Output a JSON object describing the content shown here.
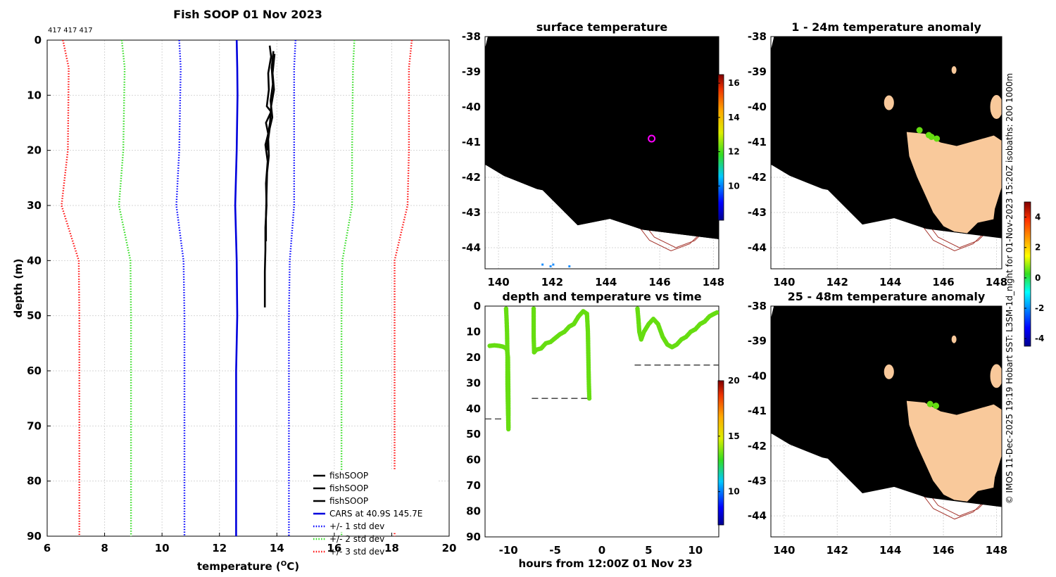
{
  "title": "Fish SOOP 01 Nov 2023",
  "ids_label": "417 417 417",
  "side_text": "© IMOS 11-Dec-2025 19:19 Hobart SST: L3SM-1d_night for 01-Nov-2023 15:20Z isobaths: 200  1000m",
  "colors": {
    "fishsoop": "#000000",
    "cars": "#0000dd",
    "std1": "#0000ff",
    "std2": "#33dd22",
    "std3": "#ff1111",
    "land": "#f9c99b",
    "isobath": "#a3322a",
    "marker": "#ff00ff"
  },
  "chart_data": [
    {
      "id": "profile",
      "type": "line",
      "xlabel": "temperature (°C)",
      "ylabel": "depth (m)",
      "xlim": [
        6,
        20
      ],
      "ylim": [
        0,
        90
      ],
      "xticks": [
        6,
        8,
        10,
        12,
        14,
        16,
        18,
        20
      ],
      "yticks": [
        0,
        10,
        20,
        30,
        40,
        50,
        60,
        70,
        80,
        90
      ],
      "legend_position": "bottom-right",
      "series": [
        {
          "name": "fishSOOP",
          "style": "solid",
          "color_key": "fishsoop",
          "points": [
            [
              13.75,
              1
            ],
            [
              13.8,
              3
            ],
            [
              13.7,
              6
            ],
            [
              13.72,
              9
            ],
            [
              13.65,
              12
            ],
            [
              13.8,
              13
            ],
            [
              13.62,
              15
            ],
            [
              13.7,
              17
            ],
            [
              13.6,
              19
            ],
            [
              13.68,
              22
            ],
            [
              13.62,
              26
            ],
            [
              13.64,
              30
            ],
            [
              13.6,
              34
            ],
            [
              13.6,
              38
            ],
            [
              13.58,
              42
            ],
            [
              13.58,
              46
            ],
            [
              13.58,
              48.5
            ]
          ]
        },
        {
          "name": "fishSOOP",
          "style": "solid",
          "color_key": "fishsoop",
          "points": [
            [
              13.88,
              2
            ],
            [
              13.82,
              5
            ],
            [
              13.86,
              8
            ],
            [
              13.78,
              11
            ],
            [
              13.84,
              14
            ],
            [
              13.75,
              16
            ],
            [
              13.7,
              18
            ],
            [
              13.72,
              21
            ],
            [
              13.66,
              24
            ],
            [
              13.64,
              28
            ],
            [
              13.62,
              32
            ],
            [
              13.62,
              36.5
            ]
          ]
        },
        {
          "name": "fishSOOP",
          "style": "solid",
          "color_key": "fishsoop",
          "points": [
            [
              13.92,
              2.5
            ],
            [
              13.85,
              6
            ],
            [
              13.9,
              9
            ],
            [
              13.8,
              12
            ],
            [
              13.76,
              15
            ],
            [
              13.68,
              17.5
            ],
            [
              13.66,
              20
            ]
          ]
        },
        {
          "name": "CARS at 40.9S 145.7E",
          "style": "solid",
          "color_key": "cars",
          "points": [
            [
              12.6,
              0
            ],
            [
              12.62,
              5
            ],
            [
              12.63,
              10
            ],
            [
              12.6,
              20
            ],
            [
              12.55,
              30
            ],
            [
              12.6,
              40
            ],
            [
              12.62,
              50
            ],
            [
              12.58,
              60
            ],
            [
              12.58,
              70
            ],
            [
              12.58,
              80
            ],
            [
              12.58,
              90
            ]
          ]
        },
        {
          "name": "+/- 1 std dev",
          "style": "dotted",
          "color_key": "std1",
          "points": [
            [
              10.6,
              0
            ],
            [
              10.65,
              5
            ],
            [
              10.6,
              20
            ],
            [
              10.5,
              30
            ],
            [
              10.75,
              40
            ],
            [
              10.78,
              50
            ],
            [
              10.78,
              90
            ]
          ]
        },
        {
          "name": "+/- 1 std dev",
          "style": "dotted",
          "color_key": "std1",
          "legend": false,
          "points": [
            [
              14.65,
              0
            ],
            [
              14.6,
              5
            ],
            [
              14.6,
              20
            ],
            [
              14.6,
              30
            ],
            [
              14.45,
              40
            ],
            [
              14.42,
              50
            ],
            [
              14.42,
              90
            ]
          ]
        },
        {
          "name": "+/- 2 std dev",
          "style": "dotted",
          "color_key": "std2",
          "points": [
            [
              8.6,
              0
            ],
            [
              8.7,
              5
            ],
            [
              8.65,
              20
            ],
            [
              8.5,
              30
            ],
            [
              8.9,
              40
            ],
            [
              8.92,
              50
            ],
            [
              8.92,
              90
            ]
          ]
        },
        {
          "name": "+/- 2 std dev",
          "style": "dotted",
          "color_key": "std2",
          "legend": false,
          "points": [
            [
              16.7,
              0
            ],
            [
              16.65,
              5
            ],
            [
              16.62,
              20
            ],
            [
              16.62,
              30
            ],
            [
              16.28,
              40
            ],
            [
              16.25,
              50
            ],
            [
              16.25,
              90
            ]
          ]
        },
        {
          "name": "+/- 3 std dev",
          "style": "dotted",
          "color_key": "std3",
          "points": [
            [
              6.55,
              0
            ],
            [
              6.75,
              5
            ],
            [
              6.72,
              20
            ],
            [
              6.5,
              30
            ],
            [
              7.1,
              40
            ],
            [
              7.12,
              50
            ],
            [
              7.12,
              90
            ]
          ]
        },
        {
          "name": "+/- 3 std dev",
          "style": "dotted",
          "color_key": "std3",
          "legend": false,
          "points": [
            [
              18.7,
              0
            ],
            [
              18.6,
              5
            ],
            [
              18.6,
              20
            ],
            [
              18.55,
              30
            ],
            [
              18.1,
              40
            ],
            [
              18.1,
              50
            ],
            [
              18.1,
              90
            ]
          ]
        }
      ]
    },
    {
      "id": "sst",
      "type": "heatmap",
      "title": "surface temperature",
      "xlim": [
        139.5,
        148.2
      ],
      "ylim": [
        -44.6,
        -38
      ],
      "xticks": [
        140,
        142,
        144,
        146,
        148
      ],
      "yticks": [
        -38,
        -39,
        -40,
        -41,
        -42,
        -43,
        -44
      ],
      "colorbar": {
        "range": [
          8,
          16.5
        ],
        "ticks": [
          10,
          12,
          14,
          16
        ]
      },
      "marker": {
        "lon": 145.7,
        "lat": -40.9
      }
    },
    {
      "id": "depth_time",
      "type": "scatter",
      "title": "depth and temperature vs time",
      "xlabel": "hours from 12:00Z 01 Nov 23",
      "xlim": [
        -12.5,
        12.5
      ],
      "ylim": [
        0,
        90
      ],
      "xticks": [
        -10,
        -5,
        0,
        5,
        10
      ],
      "yticks": [
        0,
        10,
        20,
        30,
        40,
        50,
        60,
        70,
        80,
        90
      ],
      "colorbar": {
        "range": [
          7,
          20
        ],
        "ticks": [
          10,
          15,
          20
        ]
      },
      "tracks": [
        [
          [
            -12,
            15.5
          ],
          [
            -11.5,
            15.3
          ],
          [
            -11,
            15.5
          ],
          [
            -10.6,
            15.8
          ],
          [
            -10.3,
            16.3
          ],
          [
            -10.15,
            17
          ],
          [
            -10.05,
            20
          ],
          [
            -10.02,
            30
          ],
          [
            -10.0,
            40
          ],
          [
            -10.0,
            48
          ],
          [
            -10.05,
            40
          ],
          [
            -10.1,
            30
          ],
          [
            -10.1,
            20
          ],
          [
            -10.15,
            10
          ],
          [
            -10.2,
            5
          ],
          [
            -10.25,
            1
          ]
        ],
        [
          [
            -7.3,
            1
          ],
          [
            -7.3,
            6
          ],
          [
            -7.3,
            12
          ],
          [
            -7.25,
            18
          ],
          [
            -7,
            17
          ],
          [
            -6.5,
            16.5
          ],
          [
            -6,
            14.5
          ],
          [
            -5.5,
            14
          ],
          [
            -5,
            12.5
          ],
          [
            -4.5,
            11
          ],
          [
            -4,
            10
          ],
          [
            -3.5,
            8
          ],
          [
            -3,
            7
          ],
          [
            -2.5,
            4
          ],
          [
            -2,
            2
          ],
          [
            -1.6,
            3
          ],
          [
            -1.5,
            10
          ],
          [
            -1.45,
            20
          ],
          [
            -1.4,
            30
          ],
          [
            -1.35,
            36
          ]
        ],
        [
          [
            3.8,
            1
          ],
          [
            3.9,
            5
          ],
          [
            4.0,
            10
          ],
          [
            4.2,
            13
          ],
          [
            4.5,
            10
          ],
          [
            5,
            7
          ],
          [
            5.5,
            5
          ],
          [
            6,
            7
          ],
          [
            6.5,
            12
          ],
          [
            7,
            15
          ],
          [
            7.5,
            16
          ],
          [
            8,
            15
          ],
          [
            8.5,
            13
          ],
          [
            9,
            12
          ],
          [
            9.5,
            10
          ],
          [
            10,
            9
          ],
          [
            10.5,
            7
          ],
          [
            11,
            6
          ],
          [
            11.5,
            4
          ],
          [
            12,
            3
          ],
          [
            12.3,
            2.5
          ]
        ]
      ],
      "bottoms": [
        {
          "x0": -12.5,
          "x1": -10.5,
          "depth": 44
        },
        {
          "x0": -7.5,
          "x1": -1.5,
          "depth": 36
        },
        {
          "x0": 3.5,
          "x1": 12.5,
          "depth": 23
        }
      ]
    },
    {
      "id": "anom1",
      "type": "scatter",
      "title": "1 - 24m temperature anomaly",
      "xlim": [
        139.5,
        148.2
      ],
      "ylim": [
        -44.6,
        -38
      ],
      "xticks": [
        140,
        142,
        144,
        146,
        148
      ],
      "yticks": [
        -38,
        -39,
        -40,
        -41,
        -42,
        -43,
        -44
      ],
      "points": [
        [
          145.1,
          -40.66,
          0.6
        ],
        [
          145.45,
          -40.8,
          0.5
        ],
        [
          145.75,
          -40.9,
          0.7
        ],
        [
          145.55,
          -40.85,
          0.4
        ]
      ],
      "colorbar": {
        "range": [
          -4.5,
          5
        ],
        "ticks": [
          -4,
          -2,
          0,
          2,
          4
        ]
      }
    },
    {
      "id": "anom2",
      "type": "scatter",
      "title": "25 - 48m temperature anomaly",
      "xlim": [
        139.5,
        148.2
      ],
      "ylim": [
        -44.6,
        -38
      ],
      "xticks": [
        140,
        142,
        144,
        146,
        148
      ],
      "yticks": [
        -38,
        -39,
        -40,
        -41,
        -42,
        -43,
        -44
      ],
      "points": [
        [
          145.5,
          -40.8,
          0.6
        ],
        [
          145.72,
          -40.85,
          0.5
        ]
      ]
    }
  ]
}
